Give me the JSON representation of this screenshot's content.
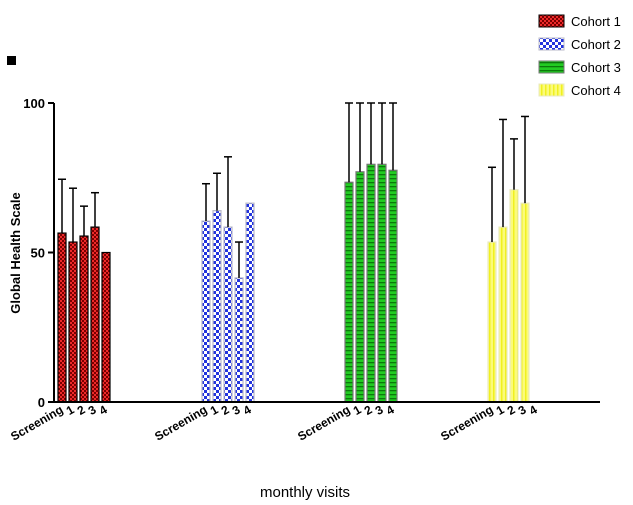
{
  "chart_data": {
    "type": "bar",
    "title": "",
    "xlabel": "monthly visits",
    "ylabel": "Global Health Scale",
    "ylim": [
      0,
      110
    ],
    "yticks": [
      0,
      50,
      100
    ],
    "categories": [
      "Screening",
      "1",
      "2",
      "3",
      "4"
    ],
    "legend_position": "top-right",
    "grid": false,
    "series": [
      {
        "name": "Cohort 1",
        "color": "#cc1f1f",
        "pattern": "checker",
        "values": [
          56.5,
          53.5,
          55.5,
          58.5,
          50
        ],
        "err": [
          18,
          18,
          10,
          11.5,
          0
        ]
      },
      {
        "name": "Cohort 2",
        "color": "#2233dd",
        "pattern": "checker-blue",
        "values": [
          60.5,
          64,
          58.5,
          41.5,
          66.5
        ],
        "err": [
          12.5,
          12.5,
          23.5,
          12,
          0
        ]
      },
      {
        "name": "Cohort 3",
        "color": "#22cc22",
        "pattern": "hstripe",
        "values": [
          73.5,
          77,
          79.5,
          79.5,
          77.5
        ],
        "err": [
          34,
          29.5,
          31,
          25.5,
          33
        ]
      },
      {
        "name": "Cohort 4",
        "color": "#f2f24a",
        "pattern": "vstripe",
        "values": [
          53.5,
          58.5,
          71,
          66.5,
          0
        ],
        "err": [
          25,
          36,
          17,
          29,
          0
        ]
      }
    ]
  }
}
